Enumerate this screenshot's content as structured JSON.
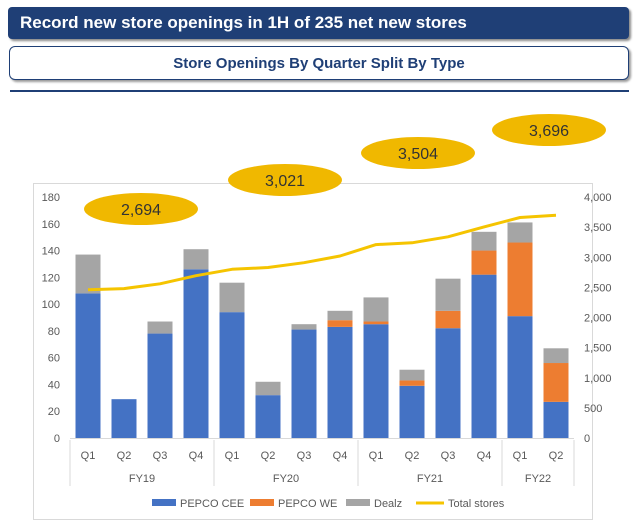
{
  "header": {
    "title": "Record new store openings in 1H of 235 net new stores",
    "subtitle": "Store Openings By Quarter Split By Type"
  },
  "colors": {
    "pepco_cee": "#4472c4",
    "pepco_we": "#ed7d31",
    "dealz": "#a5a5a5",
    "total_line": "#f5c400",
    "bubble": "#f0b800",
    "header_bg": "#1f3f76"
  },
  "chart_data": {
    "type": "bar",
    "stacked": true,
    "categories": [
      "Q1",
      "Q2",
      "Q3",
      "Q4",
      "Q1",
      "Q2",
      "Q3",
      "Q4",
      "Q1",
      "Q2",
      "Q3",
      "Q4",
      "Q1",
      "Q2"
    ],
    "groups": [
      {
        "label": "FY19",
        "start": 0,
        "count": 4
      },
      {
        "label": "FY20",
        "start": 4,
        "count": 4
      },
      {
        "label": "FY21",
        "start": 8,
        "count": 4
      },
      {
        "label": "FY22",
        "start": 12,
        "count": 2
      }
    ],
    "series": [
      {
        "name": "PEPCO CEE",
        "values": [
          108,
          29,
          78,
          126,
          94,
          32,
          81,
          83,
          85,
          39,
          82,
          122,
          91,
          27
        ]
      },
      {
        "name": "PEPCO WE",
        "values": [
          0,
          0,
          0,
          0,
          0,
          0,
          0,
          5,
          2,
          4,
          13,
          18,
          55,
          29
        ]
      },
      {
        "name": "Dealz",
        "values": [
          29,
          0,
          9,
          15,
          22,
          10,
          4,
          7,
          18,
          8,
          24,
          14,
          15,
          11
        ]
      }
    ],
    "line": {
      "name": "Total stores",
      "axis": "right",
      "values": [
        2460,
        2480,
        2560,
        2694,
        2800,
        2830,
        2910,
        3021,
        3210,
        3240,
        3340,
        3504,
        3660,
        3696
      ]
    },
    "y_left": {
      "min": 0,
      "max": 180,
      "ticks": [
        0,
        20,
        40,
        60,
        80,
        100,
        120,
        140,
        160,
        180
      ]
    },
    "y_right": {
      "min": 0,
      "max": 4000,
      "ticks": [
        "0",
        "500",
        "1,000",
        "1,500",
        "2,000",
        "2,500",
        "3,000",
        "3,500",
        "4,000"
      ]
    },
    "bubbles": [
      {
        "label": "2,694",
        "group": "FY19"
      },
      {
        "label": "3,021",
        "group": "FY20"
      },
      {
        "label": "3,504",
        "group": "FY21"
      },
      {
        "label": "3,696",
        "group": "FY22"
      }
    ],
    "legend": [
      "PEPCO CEE",
      "PEPCO WE",
      "Dealz",
      "Total stores"
    ],
    "legend_position": "bottom"
  }
}
